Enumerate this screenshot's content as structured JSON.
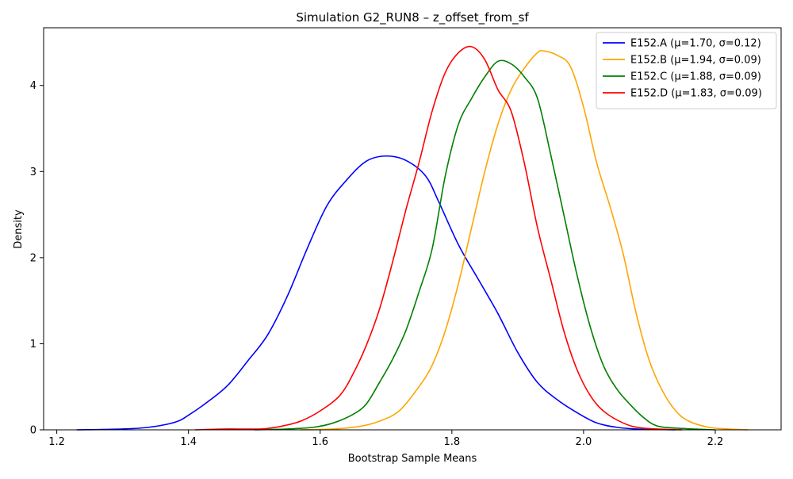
{
  "chart_data": {
    "type": "line",
    "title": "Simulation G2_RUN8 – z_offset_from_sf",
    "xlabel": "Bootstrap Sample Means",
    "ylabel": "Density",
    "xlim": [
      1.18,
      2.3
    ],
    "ylim": [
      0,
      4.67
    ],
    "xticks": [
      1.2,
      1.4,
      1.6,
      1.8,
      2.0,
      2.2
    ],
    "xtick_labels": [
      "1.2",
      "1.4",
      "1.6",
      "1.8",
      "2.0",
      "2.2"
    ],
    "yticks": [
      0,
      1,
      2,
      3,
      4
    ],
    "ytick_labels": [
      "0",
      "1",
      "2",
      "3",
      "4"
    ],
    "grid": false,
    "legend_position": "top-right",
    "series": [
      {
        "name": "E152.A (μ=1.70, σ=0.12)",
        "color": "#0000ff",
        "points": [
          [
            1.23,
            0
          ],
          [
            1.3,
            0.01
          ],
          [
            1.34,
            0.03
          ],
          [
            1.38,
            0.09
          ],
          [
            1.4,
            0.17
          ],
          [
            1.43,
            0.33
          ],
          [
            1.46,
            0.52
          ],
          [
            1.49,
            0.8
          ],
          [
            1.52,
            1.1
          ],
          [
            1.55,
            1.55
          ],
          [
            1.58,
            2.1
          ],
          [
            1.61,
            2.6
          ],
          [
            1.64,
            2.9
          ],
          [
            1.67,
            3.12
          ],
          [
            1.7,
            3.18
          ],
          [
            1.73,
            3.13
          ],
          [
            1.76,
            2.95
          ],
          [
            1.78,
            2.65
          ],
          [
            1.81,
            2.15
          ],
          [
            1.84,
            1.75
          ],
          [
            1.87,
            1.35
          ],
          [
            1.9,
            0.9
          ],
          [
            1.93,
            0.55
          ],
          [
            1.96,
            0.35
          ],
          [
            1.99,
            0.2
          ],
          [
            2.02,
            0.08
          ],
          [
            2.05,
            0.03
          ],
          [
            2.08,
            0.01
          ],
          [
            2.14,
            0
          ]
        ]
      },
      {
        "name": "E152.B (μ=1.94, σ=0.09)",
        "color": "#ffa500",
        "points": [
          [
            1.57,
            0
          ],
          [
            1.62,
            0.01
          ],
          [
            1.66,
            0.04
          ],
          [
            1.69,
            0.1
          ],
          [
            1.72,
            0.22
          ],
          [
            1.75,
            0.5
          ],
          [
            1.77,
            0.75
          ],
          [
            1.79,
            1.15
          ],
          [
            1.81,
            1.7
          ],
          [
            1.83,
            2.35
          ],
          [
            1.85,
            3.0
          ],
          [
            1.87,
            3.55
          ],
          [
            1.89,
            3.95
          ],
          [
            1.91,
            4.2
          ],
          [
            1.93,
            4.38
          ],
          [
            1.94,
            4.4
          ],
          [
            1.96,
            4.35
          ],
          [
            1.98,
            4.22
          ],
          [
            2.0,
            3.75
          ],
          [
            2.02,
            3.1
          ],
          [
            2.04,
            2.6
          ],
          [
            2.06,
            2.05
          ],
          [
            2.08,
            1.35
          ],
          [
            2.1,
            0.8
          ],
          [
            2.12,
            0.45
          ],
          [
            2.14,
            0.22
          ],
          [
            2.16,
            0.1
          ],
          [
            2.19,
            0.03
          ],
          [
            2.22,
            0.01
          ],
          [
            2.25,
            0
          ]
        ]
      },
      {
        "name": "E152.C (μ=1.88, σ=0.09)",
        "color": "#008000",
        "points": [
          [
            1.5,
            0
          ],
          [
            1.55,
            0.01
          ],
          [
            1.59,
            0.03
          ],
          [
            1.62,
            0.08
          ],
          [
            1.65,
            0.18
          ],
          [
            1.67,
            0.3
          ],
          [
            1.69,
            0.55
          ],
          [
            1.71,
            0.82
          ],
          [
            1.73,
            1.15
          ],
          [
            1.75,
            1.6
          ],
          [
            1.77,
            2.1
          ],
          [
            1.79,
            2.95
          ],
          [
            1.81,
            3.55
          ],
          [
            1.83,
            3.85
          ],
          [
            1.85,
            4.1
          ],
          [
            1.87,
            4.28
          ],
          [
            1.89,
            4.25
          ],
          [
            1.91,
            4.1
          ],
          [
            1.93,
            3.85
          ],
          [
            1.95,
            3.2
          ],
          [
            1.97,
            2.5
          ],
          [
            1.99,
            1.8
          ],
          [
            2.01,
            1.2
          ],
          [
            2.03,
            0.75
          ],
          [
            2.05,
            0.48
          ],
          [
            2.07,
            0.3
          ],
          [
            2.09,
            0.15
          ],
          [
            2.11,
            0.05
          ],
          [
            2.14,
            0.02
          ],
          [
            2.2,
            0
          ]
        ]
      },
      {
        "name": "E152.D (μ=1.83, σ=0.09)",
        "color": "#ff0000",
        "points": [
          [
            1.41,
            0
          ],
          [
            1.46,
            0.01
          ],
          [
            1.51,
            0.01
          ],
          [
            1.54,
            0.04
          ],
          [
            1.57,
            0.1
          ],
          [
            1.6,
            0.22
          ],
          [
            1.63,
            0.4
          ],
          [
            1.65,
            0.65
          ],
          [
            1.67,
            0.98
          ],
          [
            1.69,
            1.4
          ],
          [
            1.71,
            1.95
          ],
          [
            1.73,
            2.55
          ],
          [
            1.75,
            3.1
          ],
          [
            1.77,
            3.7
          ],
          [
            1.79,
            4.15
          ],
          [
            1.81,
            4.38
          ],
          [
            1.83,
            4.45
          ],
          [
            1.85,
            4.3
          ],
          [
            1.87,
            3.95
          ],
          [
            1.89,
            3.7
          ],
          [
            1.91,
            3.1
          ],
          [
            1.93,
            2.35
          ],
          [
            1.95,
            1.75
          ],
          [
            1.97,
            1.15
          ],
          [
            1.99,
            0.7
          ],
          [
            2.01,
            0.4
          ],
          [
            2.03,
            0.22
          ],
          [
            2.06,
            0.08
          ],
          [
            2.09,
            0.02
          ],
          [
            2.15,
            0
          ]
        ]
      }
    ]
  }
}
